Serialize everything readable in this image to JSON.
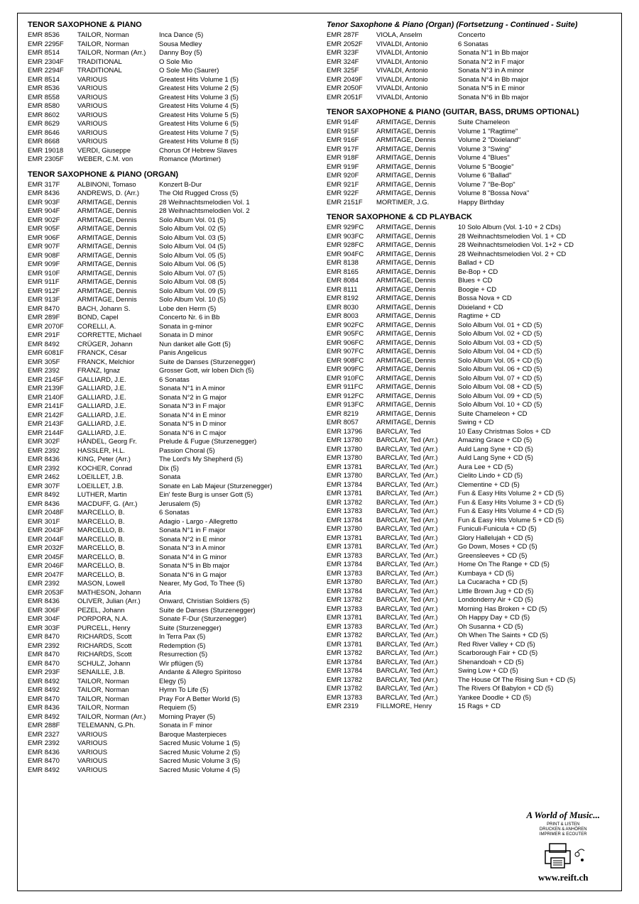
{
  "sections": [
    {
      "title": "TENOR SAXOPHONE & PIANO",
      "col": 0,
      "rows": [
        [
          "EMR 8536",
          "TAILOR, Norman",
          "Inca Dance (5)"
        ],
        [
          "EMR 2295F",
          "TAILOR, Norman",
          "Sousa Medley"
        ],
        [
          "EMR 8514",
          "TAILOR, Norman (Arr.)",
          "Danny Boy (5)"
        ],
        [
          "EMR 2304F",
          "TRADITIONAL",
          "O Sole Mio"
        ],
        [
          "EMR 2294F",
          "TRADITIONAL",
          "O Sole Mio (Saurer)"
        ],
        [
          "EMR 8514",
          "VARIOUS",
          "Greatest Hits Volume 1 (5)"
        ],
        [
          "EMR 8536",
          "VARIOUS",
          "Greatest Hits Volume 2 (5)"
        ],
        [
          "EMR 8558",
          "VARIOUS",
          "Greatest Hits Volume 3 (5)"
        ],
        [
          "EMR 8580",
          "VARIOUS",
          "Greatest Hits Volume 4 (5)"
        ],
        [
          "EMR 8602",
          "VARIOUS",
          "Greatest Hits Volume 5 (5)"
        ],
        [
          "EMR 8629",
          "VARIOUS",
          "Greatest Hits Volume 6 (5)"
        ],
        [
          "EMR 8646",
          "VARIOUS",
          "Greatest Hits Volume 7 (5)"
        ],
        [
          "EMR 8668",
          "VARIOUS",
          "Greatest Hits Volume 8 (5)"
        ],
        [
          "EMR 19018",
          "VERDI, Giuseppe",
          "Chorus Of Hebrew Slaves"
        ],
        [
          "EMR 2305F",
          "WEBER, C.M. von",
          "Romance (Mortimer)"
        ]
      ]
    },
    {
      "title": "TENOR SAXOPHONE & PIANO (ORGAN)",
      "col": 0,
      "rows": [
        [
          "EMR 317F",
          "ALBINONI, Tomaso",
          "Konzert B-Dur"
        ],
        [
          "EMR 8436",
          "ANDREWS, D. (Arr.)",
          "The Old Rugged Cross (5)"
        ],
        [
          "EMR 903F",
          "ARMITAGE, Dennis",
          "28 Weihnachtsmelodien Vol. 1"
        ],
        [
          "EMR 904F",
          "ARMITAGE, Dennis",
          "28 Weihnachtsmelodien Vol. 2"
        ],
        [
          "EMR 902F",
          "ARMITAGE, Dennis",
          "Solo Album Vol. 01 (5)"
        ],
        [
          "EMR 905F",
          "ARMITAGE, Dennis",
          "Solo Album Vol. 02 (5)"
        ],
        [
          "EMR 906F",
          "ARMITAGE, Dennis",
          "Solo Album Vol. 03 (5)"
        ],
        [
          "EMR 907F",
          "ARMITAGE, Dennis",
          "Solo Album Vol. 04 (5)"
        ],
        [
          "EMR 908F",
          "ARMITAGE, Dennis",
          "Solo Album Vol. 05 (5)"
        ],
        [
          "EMR 909F",
          "ARMITAGE, Dennis",
          "Solo Album Vol. 06 (5)"
        ],
        [
          "EMR 910F",
          "ARMITAGE, Dennis",
          "Solo Album Vol. 07 (5)"
        ],
        [
          "EMR 911F",
          "ARMITAGE, Dennis",
          "Solo Album Vol. 08 (5)"
        ],
        [
          "EMR 912F",
          "ARMITAGE, Dennis",
          "Solo Album Vol. 09 (5)"
        ],
        [
          "EMR 913F",
          "ARMITAGE, Dennis",
          "Solo Album Vol. 10 (5)"
        ],
        [
          "EMR 8470",
          "BACH, Johann S.",
          "Lobe den Herrn (5)"
        ],
        [
          "EMR 289F",
          "BOND, Capel",
          "Concerto Nr. 6 in Bb"
        ],
        [
          "EMR 2070F",
          "CORELLI, A.",
          "Sonata in g-minor"
        ],
        [
          "EMR 291F",
          "CORRETTE, Michael",
          "Sonata in D minor"
        ],
        [
          "EMR 8492",
          "CRÜGER, Johann",
          "Nun danket alle Gott (5)"
        ],
        [
          "EMR 6081F",
          "FRANCK, César",
          "Panis Angelicus"
        ],
        [
          "EMR 305F",
          "FRANCK, Melchior",
          "Suite de Danses (Sturzenegger)"
        ],
        [
          "EMR 2392",
          "FRANZ, Ignaz",
          "Grosser Gott, wir loben Dich (5)"
        ],
        [
          "EMR 2145F",
          "GALLIARD, J.E.",
          "6 Sonatas"
        ],
        [
          "EMR 2139F",
          "GALLIARD, J.E.",
          "Sonata N°1 in A minor"
        ],
        [
          "EMR 2140F",
          "GALLIARD, J.E.",
          "Sonata N°2 in G major"
        ],
        [
          "EMR 2141F",
          "GALLIARD, J.E.",
          "Sonata N°3 in F major"
        ],
        [
          "EMR 2142F",
          "GALLIARD, J.E.",
          "Sonata N°4 in E minor"
        ],
        [
          "EMR 2143F",
          "GALLIARD, J.E.",
          "Sonata N°5 in D minor"
        ],
        [
          "EMR 2144F",
          "GALLIARD, J.E.",
          "Sonata N°6 in C major"
        ],
        [
          "EMR 302F",
          "HÄNDEL, Georg Fr.",
          "Prelude & Fugue (Sturzenegger)"
        ],
        [
          "EMR 2392",
          "HASSLER, H.L.",
          "Passion Choral (5)"
        ],
        [
          "EMR 8436",
          "KING, Peter (Arr.)",
          "The Lord's My Shepherd (5)"
        ],
        [
          "EMR 2392",
          "KOCHER, Conrad",
          "Dix (5)"
        ],
        [
          "EMR 2462",
          "LOEILLET, J.B.",
          "Sonata"
        ],
        [
          "EMR 307F",
          "LOEILLET, J.B.",
          "Sonate en Lab Majeur (Sturzenegger)"
        ],
        [
          "EMR 8492",
          "LUTHER, Martin",
          "Ein' feste Burg is unser Gott (5)"
        ],
        [
          "EMR 8436",
          "MACDUFF, G. (Arr.)",
          "Jerusalem (5)"
        ],
        [
          "EMR 2048F",
          "MARCELLO, B.",
          "6 Sonatas"
        ],
        [
          "EMR 301F",
          "MARCELLO, B.",
          "Adagio - Largo - Allegretto"
        ],
        [
          "EMR 2043F",
          "MARCELLO, B.",
          "Sonata N°1 in F major"
        ],
        [
          "EMR 2044F",
          "MARCELLO, B.",
          "Sonata N°2 in E minor"
        ],
        [
          "EMR 2032F",
          "MARCELLO, B.",
          "Sonata N°3 in A minor"
        ],
        [
          "EMR 2045F",
          "MARCELLO, B.",
          "Sonata N°4 in G minor"
        ],
        [
          "EMR 2046F",
          "MARCELLO, B.",
          "Sonata N°5 in Bb major"
        ],
        [
          "EMR 2047F",
          "MARCELLO, B.",
          "Sonata N°6 in G major"
        ],
        [
          "EMR 2392",
          "MASON, Lowell",
          "Nearer, My God, To Thee (5)"
        ],
        [
          "EMR 2053F",
          "MATHESON, Johann",
          "Aria"
        ],
        [
          "EMR 8436",
          "OLIVER, Julian (Arr.)",
          "Onward, Christian Soldiers (5)"
        ],
        [
          "EMR 306F",
          "PEZEL, Johann",
          "Suite de Danses (Sturzenegger)"
        ],
        [
          "EMR 304F",
          "PORPORA, N.A.",
          "Sonate F-Dur (Sturzenegger)"
        ],
        [
          "EMR 303F",
          "PURCELL, Henry",
          "Suite (Sturzenegger)"
        ],
        [
          "EMR 8470",
          "RICHARDS, Scott",
          "In Terra Pax (5)"
        ],
        [
          "EMR 2392",
          "RICHARDS, Scott",
          "Redemption (5)"
        ],
        [
          "EMR 8470",
          "RICHARDS, Scott",
          "Resurrection (5)"
        ],
        [
          "EMR 8470",
          "SCHULZ, Johann",
          "Wir pflügen (5)"
        ],
        [
          "EMR 293F",
          "SENAILLE, J.B.",
          "Andante & Allegro Spiritoso"
        ],
        [
          "EMR 8492",
          "TAILOR, Norman",
          "Elegy (5)"
        ],
        [
          "EMR 8492",
          "TAILOR, Norman",
          "Hymn To Life (5)"
        ],
        [
          "EMR 8470",
          "TAILOR, Norman",
          "Pray For A Better World (5)"
        ],
        [
          "EMR 8436",
          "TAILOR, Norman",
          "Requiem (5)"
        ],
        [
          "EMR 8492",
          "TAILOR, Norman (Arr.)",
          "Morning Prayer (5)"
        ],
        [
          "EMR 288F",
          "TELEMANN, G.Ph.",
          "Sonata in F minor"
        ],
        [
          "EMR 2327",
          "VARIOUS",
          "Baroque Masterpieces"
        ],
        [
          "EMR 2392",
          "VARIOUS",
          "Sacred Music Volume 1 (5)"
        ],
        [
          "EMR 8436",
          "VARIOUS",
          "Sacred Music Volume 2 (5)"
        ],
        [
          "EMR 8470",
          "VARIOUS",
          "Sacred Music Volume 3 (5)"
        ],
        [
          "EMR 8492",
          "VARIOUS",
          "Sacred Music Volume 4 (5)"
        ]
      ]
    },
    {
      "title": "Tenor Saxophone & Piano (Organ) (Fortsetzung - Continued - Suite)",
      "col": 1,
      "italic": true,
      "rows": [
        [
          "EMR 287F",
          "VIOLA, Anselm",
          "Concerto"
        ],
        [
          "EMR 2052F",
          "VIVALDI, Antonio",
          "6 Sonatas"
        ],
        [
          "EMR 323F",
          "VIVALDI, Antonio",
          "Sonata N°1 in Bb major"
        ],
        [
          "EMR 324F",
          "VIVALDI, Antonio",
          "Sonata N°2 in F major"
        ],
        [
          "EMR 325F",
          "VIVALDI, Antonio",
          "Sonata N°3 in A minor"
        ],
        [
          "EMR 2049F",
          "VIVALDI, Antonio",
          "Sonata N°4 in Bb major"
        ],
        [
          "EMR 2050F",
          "VIVALDI, Antonio",
          "Sonata N°5 in E minor"
        ],
        [
          "EMR 2051F",
          "VIVALDI, Antonio",
          "Sonata N°6 in Bb major"
        ]
      ]
    },
    {
      "title": "TENOR SAXOPHONE & PIANO (GUITAR, BASS, DRUMS OPTIONAL)",
      "col": 1,
      "rows": [
        [
          "EMR 914F",
          "ARMITAGE, Dennis",
          "Suite Chameleon"
        ],
        [
          "EMR 915F",
          "ARMITAGE, Dennis",
          "Volume 1 \"Ragtime\""
        ],
        [
          "EMR 916F",
          "ARMITAGE, Dennis",
          "Volume 2 \"Dixieland\""
        ],
        [
          "EMR 917F",
          "ARMITAGE, Dennis",
          "Volume 3 \"Swing\""
        ],
        [
          "EMR 918F",
          "ARMITAGE, Dennis",
          "Volume 4 \"Blues\""
        ],
        [
          "EMR 919F",
          "ARMITAGE, Dennis",
          "Volume 5 \"Boogie\""
        ],
        [
          "EMR 920F",
          "ARMITAGE, Dennis",
          "Volume 6 \"Ballad\""
        ],
        [
          "EMR 921F",
          "ARMITAGE, Dennis",
          "Volume 7 \"Be-Bop\""
        ],
        [
          "EMR 922F",
          "ARMITAGE, Dennis",
          "Volume 8 \"Bossa Nova\""
        ],
        [
          "EMR 2151F",
          "MORTIMER, J.G.",
          "Happy Birthday"
        ]
      ]
    },
    {
      "title": "TENOR SAXOPHONE & CD PLAYBACK",
      "col": 1,
      "rows": [
        [
          "EMR 929FC",
          "ARMITAGE, Dennis",
          "10 Solo Album (Vol. 1-10 + 2 CDs)"
        ],
        [
          "EMR 903FC",
          "ARMITAGE, Dennis",
          "28 Weihnachtsmelodien Vol. 1 + CD"
        ],
        [
          "EMR 928FC",
          "ARMITAGE, Dennis",
          "28 Weihnachtsmelodien Vol. 1+2 + CD"
        ],
        [
          "EMR 904FC",
          "ARMITAGE, Dennis",
          "28 Weihnachtsmelodien Vol. 2 + CD"
        ],
        [
          "EMR 8138",
          "ARMITAGE, Dennis",
          "Ballad + CD"
        ],
        [
          "EMR 8165",
          "ARMITAGE, Dennis",
          "Be-Bop + CD"
        ],
        [
          "EMR 8084",
          "ARMITAGE, Dennis",
          "Blues + CD"
        ],
        [
          "EMR 8111",
          "ARMITAGE, Dennis",
          "Boogie + CD"
        ],
        [
          "EMR 8192",
          "ARMITAGE, Dennis",
          "Bossa Nova + CD"
        ],
        [
          "EMR 8030",
          "ARMITAGE, Dennis",
          "Dixieland + CD"
        ],
        [
          "EMR 8003",
          "ARMITAGE, Dennis",
          "Ragtime + CD"
        ],
        [
          "EMR 902FC",
          "ARMITAGE, Dennis",
          "Solo Album Vol. 01 + CD (5)"
        ],
        [
          "EMR 905FC",
          "ARMITAGE, Dennis",
          "Solo Album Vol. 02 + CD (5)"
        ],
        [
          "EMR 906FC",
          "ARMITAGE, Dennis",
          "Solo Album Vol. 03 + CD (5)"
        ],
        [
          "EMR 907FC",
          "ARMITAGE, Dennis",
          "Solo Album Vol. 04 + CD (5)"
        ],
        [
          "EMR 908FC",
          "ARMITAGE, Dennis",
          "Solo Album Vol. 05 + CD (5)"
        ],
        [
          "EMR 909FC",
          "ARMITAGE, Dennis",
          "Solo Album Vol. 06 + CD (5)"
        ],
        [
          "EMR 910FC",
          "ARMITAGE, Dennis",
          "Solo Album Vol. 07 + CD (5)"
        ],
        [
          "EMR 911FC",
          "ARMITAGE, Dennis",
          "Solo Album Vol. 08 + CD (5)"
        ],
        [
          "EMR 912FC",
          "ARMITAGE, Dennis",
          "Solo Album Vol. 09 + CD (5)"
        ],
        [
          "EMR 913FC",
          "ARMITAGE, Dennis",
          "Solo Album Vol. 10 + CD (5)"
        ],
        [
          "EMR 8219",
          "ARMITAGE, Dennis",
          "Suite Chameleon + CD"
        ],
        [
          "EMR 8057",
          "ARMITAGE, Dennis",
          "Swing + CD"
        ],
        [
          "EMR 13796",
          "BARCLAY, Ted",
          "10 Easy Christmas Solos + CD"
        ],
        [
          "EMR 13780",
          "BARCLAY, Ted (Arr.)",
          "Amazing Grace + CD (5)"
        ],
        [
          "EMR 13780",
          "BARCLAY, Ted (Arr.)",
          "Auld Lang Syne + CD (5)"
        ],
        [
          "EMR 13780",
          "BARCLAY, Ted (Arr.)",
          "Auld Lang Syne + CD (5)"
        ],
        [
          "EMR 13781",
          "BARCLAY, Ted (Arr.)",
          "Aura Lee + CD (5)"
        ],
        [
          "EMR 13780",
          "BARCLAY, Ted (Arr.)",
          "Cielito Lindo + CD (5)"
        ],
        [
          "EMR 13784",
          "BARCLAY, Ted (Arr.)",
          "Clementine + CD (5)"
        ],
        [
          "EMR 13781",
          "BARCLAY, Ted (Arr.)",
          "Fun & Easy Hits Volume 2 + CD (5)"
        ],
        [
          "EMR 13782",
          "BARCLAY, Ted (Arr.)",
          "Fun & Easy Hits Volume 3 + CD (5)"
        ],
        [
          "EMR 13783",
          "BARCLAY, Ted (Arr.)",
          "Fun & Easy Hits Volume 4 + CD (5)"
        ],
        [
          "EMR 13784",
          "BARCLAY, Ted (Arr.)",
          "Fun & Easy Hits Volume 5 + CD (5)"
        ],
        [
          "EMR 13780",
          "BARCLAY, Ted (Arr.)",
          "Funiculi-Funicula + CD (5)"
        ],
        [
          "EMR 13781",
          "BARCLAY, Ted (Arr.)",
          "Glory Hallelujah + CD (5)"
        ],
        [
          "EMR 13781",
          "BARCLAY, Ted (Arr.)",
          "Go Down, Moses + CD (5)"
        ],
        [
          "EMR 13783",
          "BARCLAY, Ted (Arr.)",
          "Greensleeves + CD (5)"
        ],
        [
          "EMR 13784",
          "BARCLAY, Ted (Arr.)",
          "Home On The Range + CD (5)"
        ],
        [
          "EMR 13783",
          "BARCLAY, Ted (Arr.)",
          "Kumbaya + CD (5)"
        ],
        [
          "EMR 13780",
          "BARCLAY, Ted (Arr.)",
          "La Cucaracha + CD (5)"
        ],
        [
          "EMR 13784",
          "BARCLAY, Ted (Arr.)",
          "Little Brown Jug + CD (5)"
        ],
        [
          "EMR 13782",
          "BARCLAY, Ted (Arr.)",
          "Londonderry Air + CD (5)"
        ],
        [
          "EMR 13783",
          "BARCLAY, Ted (Arr.)",
          "Morning Has Broken + CD (5)"
        ],
        [
          "EMR 13781",
          "BARCLAY, Ted (Arr.)",
          "Oh Happy Day + CD (5)"
        ],
        [
          "EMR 13783",
          "BARCLAY, Ted (Arr.)",
          "Oh Susanna + CD (5)"
        ],
        [
          "EMR 13782",
          "BARCLAY, Ted (Arr.)",
          "Oh When The Saints + CD (5)"
        ],
        [
          "EMR 13781",
          "BARCLAY, Ted (Arr.)",
          "Red River Valley + CD (5)"
        ],
        [
          "EMR 13782",
          "BARCLAY, Ted (Arr.)",
          "Scarborough Fair + CD (5)"
        ],
        [
          "EMR 13784",
          "BARCLAY, Ted (Arr.)",
          "Shenandoah + CD (5)"
        ],
        [
          "EMR 13784",
          "BARCLAY, Ted (Arr.)",
          "Swing Low + CD (5)"
        ],
        [
          "EMR 13782",
          "BARCLAY, Ted (Arr.)",
          "The House Of The Rising Sun + CD (5)"
        ],
        [
          "EMR 13782",
          "BARCLAY, Ted (Arr.)",
          "The Rivers Of Babylon + CD (5)"
        ],
        [
          "EMR 13783",
          "BARCLAY, Ted (Arr.)",
          "Yankee Doodle + CD (5)"
        ],
        [
          "EMR 2319",
          "FILLMORE, Henry",
          "15 Rags + CD"
        ]
      ]
    }
  ],
  "logo": {
    "title": "A World of Music...",
    "sub1": "PRINT & LISTEN",
    "sub2": "DRUCKEN & ANHÖREN",
    "sub3": "IMPRIMER & ECOUTER",
    "url": "www.reift.ch"
  }
}
